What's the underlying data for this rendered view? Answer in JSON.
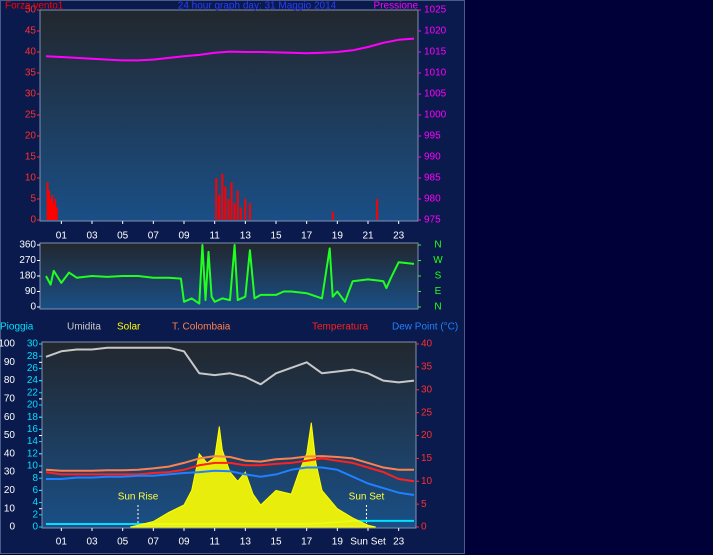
{
  "chart_data": [
    {
      "type": "combo",
      "title": "24 hour graph day: 31 Maggio 2014",
      "xlim": [
        0,
        24
      ],
      "xticks": [
        {
          "value": 1,
          "label": "01"
        },
        {
          "value": 3,
          "label": "03"
        },
        {
          "value": 5,
          "label": "05"
        },
        {
          "value": 7,
          "label": "07"
        },
        {
          "value": 9,
          "label": "09"
        },
        {
          "value": 11,
          "label": "11"
        },
        {
          "value": 13,
          "label": "13"
        },
        {
          "value": 15,
          "label": "15"
        },
        {
          "value": 17,
          "label": "17"
        },
        {
          "value": 19,
          "label": "19"
        },
        {
          "value": 21,
          "label": "21"
        },
        {
          "value": 23,
          "label": "23"
        }
      ],
      "ylim": [
        0,
        50
      ],
      "yticks": [
        0,
        5,
        10,
        15,
        20,
        25,
        30,
        35,
        40,
        45,
        50
      ],
      "y2lim": [
        975,
        1025
      ],
      "y2ticks": [
        975,
        980,
        985,
        990,
        995,
        1000,
        1005,
        1010,
        1015,
        1020,
        1025
      ],
      "series": [
        {
          "name": "Forza vento1",
          "color": "#ff0000",
          "type": "bar",
          "x": [
            0.1,
            0.2,
            0.3,
            0.4,
            0.5,
            0.6,
            0.7,
            11.1,
            11.3,
            11.5,
            11.7,
            11.9,
            12.1,
            12.3,
            12.5,
            12.7,
            13.0,
            13.3,
            18.7,
            21.6
          ],
          "values": [
            9,
            7,
            5,
            6,
            4,
            5,
            3,
            10,
            6,
            11,
            8,
            5,
            9,
            4,
            7,
            3,
            5,
            4,
            2,
            5
          ]
        },
        {
          "name": "Pressione",
          "color": "#ff00ff",
          "type": "line",
          "axis": "y2",
          "x": [
            0,
            1,
            2,
            3,
            4,
            5,
            6,
            7,
            8,
            9,
            10,
            11,
            12,
            13,
            14,
            15,
            16,
            17,
            18,
            19,
            20,
            21,
            22,
            23,
            24
          ],
          "values": [
            1014,
            1013.8,
            1013.6,
            1013.4,
            1013.2,
            1013,
            1013,
            1013.2,
            1013.6,
            1014,
            1014.3,
            1014.8,
            1015.1,
            1015,
            1015,
            1014.9,
            1014.8,
            1014.7,
            1014.8,
            1015,
            1015.4,
            1016.2,
            1017.2,
            1017.9,
            1018.2
          ]
        }
      ]
    },
    {
      "type": "line",
      "xlim": [
        0,
        24
      ],
      "ylim": [
        0,
        360
      ],
      "yticks": [
        0,
        90,
        180,
        270,
        360
      ],
      "y2lim": [
        0,
        360
      ],
      "y2ticks": [
        {
          "value": 0,
          "label": "N"
        },
        {
          "value": 90,
          "label": "E"
        },
        {
          "value": 180,
          "label": "S"
        },
        {
          "value": 270,
          "label": "W"
        },
        {
          "value": 360,
          "label": "N"
        }
      ],
      "series": [
        {
          "color": "#20ff20",
          "type": "line",
          "x": [
            0,
            0.3,
            0.5,
            1,
            1.5,
            2,
            3,
            4,
            5,
            6,
            7,
            8,
            8.8,
            9,
            9.5,
            10,
            10.2,
            10.4,
            10.6,
            10.8,
            11,
            11.5,
            12,
            12.3,
            12.5,
            13,
            13.3,
            13.6,
            14,
            15,
            15.5,
            16,
            17,
            18,
            18.5,
            18.7,
            19,
            19.5,
            20,
            21,
            22,
            22.2,
            22.5,
            23,
            24
          ],
          "values": [
            180,
            130,
            210,
            140,
            200,
            170,
            180,
            175,
            180,
            180,
            170,
            170,
            165,
            30,
            50,
            20,
            360,
            40,
            320,
            60,
            30,
            50,
            40,
            360,
            40,
            60,
            330,
            50,
            70,
            70,
            90,
            90,
            80,
            50,
            340,
            60,
            90,
            30,
            150,
            160,
            150,
            110,
            170,
            260,
            250
          ]
        }
      ]
    },
    {
      "type": "combo",
      "xlim": [
        0,
        24
      ],
      "xticks": [
        {
          "value": 1,
          "label": "01"
        },
        {
          "value": 3,
          "label": "03"
        },
        {
          "value": 5,
          "label": "05"
        },
        {
          "value": 7,
          "label": "07"
        },
        {
          "value": 9,
          "label": "09"
        },
        {
          "value": 11,
          "label": "11"
        },
        {
          "value": 13,
          "label": "13"
        },
        {
          "value": 15,
          "label": "15"
        },
        {
          "value": 17,
          "label": "17"
        },
        {
          "value": 19,
          "label": "19"
        },
        {
          "value": 21,
          "label": "Sun Set"
        },
        {
          "value": 23,
          "label": "23"
        }
      ],
      "ylim": [
        0,
        100
      ],
      "yticks": [
        0,
        10,
        20,
        30,
        40,
        50,
        60,
        70,
        80,
        90,
        100
      ],
      "y2lim": [
        0,
        30
      ],
      "y2ticks": [
        0,
        2,
        4,
        6,
        8,
        10,
        12,
        14,
        16,
        18,
        20,
        22,
        24,
        26,
        28,
        30
      ],
      "y3lim": [
        0,
        40
      ],
      "y3ticks": [
        0,
        5,
        10,
        15,
        20,
        25,
        30,
        35,
        40
      ],
      "annotations": [
        {
          "text": "Sun Rise",
          "x": 6
        },
        {
          "text": "Sun Set",
          "x": 20.9
        }
      ],
      "series": [
        {
          "name": "Pioggia",
          "color": "#00e0ff",
          "type": "line",
          "axis": "y2",
          "x": [
            0,
            4,
            8,
            12,
            16,
            17,
            18,
            19,
            20,
            21,
            22,
            23,
            24
          ],
          "values": [
            0.5,
            0.5,
            0.5,
            0.5,
            0.5,
            0.5,
            0.6,
            0.8,
            1,
            1,
            1,
            1,
            1
          ]
        },
        {
          "name": "Umidita",
          "color": "#c8c8c8",
          "type": "line",
          "x": [
            0,
            1,
            2,
            3,
            4,
            5,
            6,
            7,
            8,
            9,
            10,
            11,
            12,
            13,
            14,
            15,
            16,
            17,
            18,
            19,
            20,
            21,
            22,
            23,
            24
          ],
          "values": [
            93,
            96,
            97,
            97,
            98,
            98,
            98,
            98,
            98,
            96,
            84,
            83,
            84,
            82,
            78,
            84,
            87,
            90,
            84,
            85,
            86,
            84,
            80,
            79,
            80
          ]
        },
        {
          "name": "Solar",
          "color": "#ffff00",
          "type": "area",
          "x": [
            5.5,
            6,
            7,
            8,
            9,
            9.5,
            10,
            10.5,
            11,
            11.3,
            11.5,
            12,
            12.5,
            13,
            13.5,
            14,
            15,
            16,
            16.5,
            17,
            17.3,
            17.6,
            18,
            19,
            20,
            21,
            21.5
          ],
          "values": [
            0,
            1,
            3,
            8,
            12,
            20,
            40,
            35,
            38,
            55,
            42,
            30,
            25,
            30,
            18,
            12,
            20,
            18,
            30,
            40,
            57,
            35,
            20,
            10,
            5,
            1,
            0
          ]
        },
        {
          "name": "T. Colombaia",
          "color": "#ff8050",
          "type": "line",
          "axis": "y3",
          "x": [
            0,
            1,
            2,
            3,
            4,
            5,
            6,
            7,
            8,
            9,
            10,
            11,
            12,
            13,
            14,
            15,
            16,
            17,
            18,
            19,
            20,
            21,
            22,
            23,
            24
          ],
          "values": [
            12.5,
            12.3,
            12.3,
            12.3,
            12.4,
            12.4,
            12.5,
            12.8,
            13.2,
            14,
            15,
            15.5,
            15.3,
            14.5,
            14.3,
            14.8,
            15,
            15.4,
            15.5,
            15.3,
            15,
            14,
            13,
            12.5,
            12.5
          ]
        },
        {
          "name": "Temperatura",
          "color": "#ff2020",
          "type": "line",
          "axis": "y3",
          "x": [
            0,
            1,
            2,
            3,
            4,
            5,
            6,
            7,
            8,
            9,
            10,
            11,
            12,
            13,
            14,
            15,
            16,
            17,
            18,
            19,
            20,
            21,
            22,
            23,
            24
          ],
          "values": [
            12,
            11.5,
            11.5,
            11.5,
            11.5,
            11.5,
            11.5,
            11.8,
            12,
            12.5,
            13.5,
            14,
            14,
            13.5,
            13.5,
            13.8,
            14,
            14.5,
            15,
            14.5,
            14,
            13,
            12,
            10.5,
            10
          ]
        },
        {
          "name": "Dew Point (°C)",
          "color": "#2080ff",
          "type": "line",
          "axis": "y3",
          "x": [
            0,
            1,
            2,
            3,
            4,
            5,
            6,
            7,
            8,
            9,
            10,
            11,
            12,
            13,
            14,
            15,
            16,
            17,
            18,
            19,
            20,
            21,
            22,
            23,
            24
          ],
          "values": [
            10.5,
            10.5,
            10.8,
            10.8,
            11,
            11,
            11.2,
            11.2,
            11.5,
            11.8,
            12,
            12.3,
            12.2,
            11.5,
            11,
            11.5,
            12.5,
            13,
            13,
            12.5,
            11,
            9.5,
            8.5,
            7.5,
            7
          ]
        }
      ]
    }
  ]
}
